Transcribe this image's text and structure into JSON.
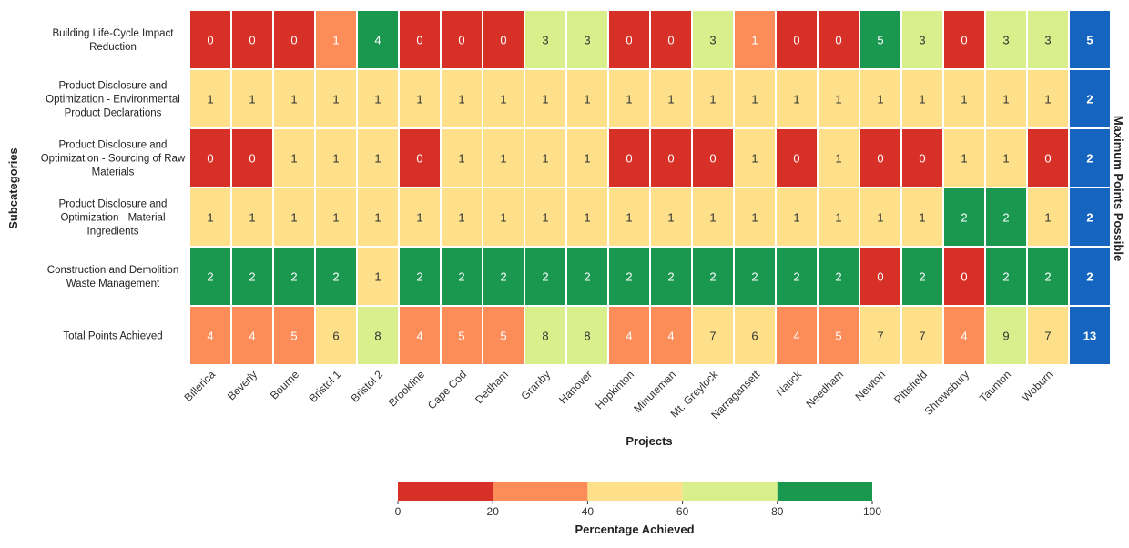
{
  "chart_data": {
    "type": "heatmap",
    "xlabel": "Projects",
    "ylabel": "Subcategories",
    "right_label": "Maximum Points Possible",
    "columns": [
      "Billerica",
      "Beverly",
      "Bourne",
      "Bristol 1",
      "Bristol 2",
      "Brookline",
      "Cape Cod",
      "Dedham",
      "Granby",
      "Hanover",
      "Hopkinton",
      "Minuteman",
      "Mt. Greylock",
      "Narragansett",
      "Natick",
      "Needham",
      "Newton",
      "Pittsfield",
      "Shrewsbury",
      "Taunton",
      "Woburn"
    ],
    "rows": [
      {
        "label": [
          "Building Life-Cycle Impact",
          "Reduction"
        ],
        "values": [
          0,
          0,
          0,
          1,
          4,
          0,
          0,
          0,
          3,
          3,
          0,
          0,
          3,
          1,
          0,
          0,
          5,
          3,
          0,
          3,
          3
        ],
        "max": 5
      },
      {
        "label": [
          "Product Disclosure and",
          "Optimization - Environmental",
          "Product Declarations"
        ],
        "values": [
          1,
          1,
          1,
          1,
          1,
          1,
          1,
          1,
          1,
          1,
          1,
          1,
          1,
          1,
          1,
          1,
          1,
          1,
          1,
          1,
          1
        ],
        "max": 2
      },
      {
        "label": [
          "Product Disclosure and",
          "Optimization - Sourcing of Raw",
          "Materials"
        ],
        "values": [
          0,
          0,
          1,
          1,
          1,
          0,
          1,
          1,
          1,
          1,
          0,
          0,
          0,
          1,
          0,
          1,
          0,
          0,
          1,
          1,
          0
        ],
        "max": 2
      },
      {
        "label": [
          "Product Disclosure and",
          "Optimization - Material",
          "Ingredients"
        ],
        "values": [
          1,
          1,
          1,
          1,
          1,
          1,
          1,
          1,
          1,
          1,
          1,
          1,
          1,
          1,
          1,
          1,
          1,
          1,
          2,
          2,
          1
        ],
        "max": 2
      },
      {
        "label": [
          "Construction and Demolition",
          "Waste Management"
        ],
        "values": [
          2,
          2,
          2,
          2,
          1,
          2,
          2,
          2,
          2,
          2,
          2,
          2,
          2,
          2,
          2,
          2,
          0,
          2,
          0,
          2,
          2
        ],
        "max": 2
      },
      {
        "label": [
          "Total Points Achieved"
        ],
        "values": [
          4,
          4,
          5,
          6,
          8,
          4,
          5,
          5,
          8,
          8,
          4,
          4,
          7,
          6,
          4,
          5,
          7,
          7,
          4,
          9,
          7
        ],
        "max": 13
      }
    ],
    "colorbar": {
      "label": "Percentage Achieved",
      "ticks": [
        0,
        20,
        40,
        60,
        80,
        100
      ],
      "bins": [
        {
          "from": 0,
          "to": 20,
          "color": "#d73027"
        },
        {
          "from": 20,
          "to": 40,
          "color": "#fc8d59"
        },
        {
          "from": 40,
          "to": 60,
          "color": "#fee08b"
        },
        {
          "from": 60,
          "to": 80,
          "color": "#d9ef8b"
        },
        {
          "from": 80,
          "to": 100,
          "color": "#1a9850"
        }
      ]
    },
    "max_column_color": "#1565c0"
  }
}
